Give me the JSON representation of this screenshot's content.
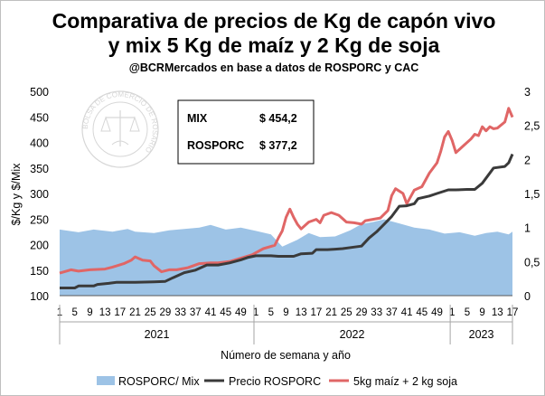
{
  "chart_data": {
    "type": "line",
    "title_line1": "Comparativa de precios de Kg de capón vivo",
    "title_line2": "y mix 5 Kg de maíz y 2 Kg de soja",
    "subtitle": "@BCRMercados en base a datos de ROSPORC y CAC",
    "ylabel": "$/Kg y $/Mix",
    "xlabel": "Número de semana y año",
    "ylim": [
      100,
      500
    ],
    "y2lim": [
      0,
      3
    ],
    "yticks": [
      "100",
      "150",
      "200",
      "250",
      "300",
      "350",
      "400",
      "450",
      "500"
    ],
    "y2ticks": [
      "0",
      "0,5",
      "1",
      "1,5",
      "2",
      "2,5",
      "3"
    ],
    "xticks": [
      {
        "idx": 0,
        "label": "1"
      },
      {
        "idx": 4,
        "label": "5"
      },
      {
        "idx": 8,
        "label": "9"
      },
      {
        "idx": 12,
        "label": "13"
      },
      {
        "idx": 16,
        "label": "17"
      },
      {
        "idx": 20,
        "label": "21"
      },
      {
        "idx": 24,
        "label": "25"
      },
      {
        "idx": 28,
        "label": "29"
      },
      {
        "idx": 32,
        "label": "33"
      },
      {
        "idx": 36,
        "label": "37"
      },
      {
        "idx": 40,
        "label": "41"
      },
      {
        "idx": 44,
        "label": "45"
      },
      {
        "idx": 48,
        "label": "49"
      },
      {
        "idx": 52,
        "label": "1"
      },
      {
        "idx": 56,
        "label": "5"
      },
      {
        "idx": 60,
        "label": "9"
      },
      {
        "idx": 64,
        "label": "13"
      },
      {
        "idx": 68,
        "label": "17"
      },
      {
        "idx": 72,
        "label": "21"
      },
      {
        "idx": 76,
        "label": "25"
      },
      {
        "idx": 80,
        "label": "29"
      },
      {
        "idx": 84,
        "label": "33"
      },
      {
        "idx": 88,
        "label": "37"
      },
      {
        "idx": 92,
        "label": "41"
      },
      {
        "idx": 96,
        "label": "45"
      },
      {
        "idx": 100,
        "label": "49"
      },
      {
        "idx": 104,
        "label": "1"
      },
      {
        "idx": 108,
        "label": "5"
      },
      {
        "idx": 112,
        "label": "9"
      },
      {
        "idx": 116,
        "label": "13"
      },
      {
        "idx": 120,
        "label": "17"
      }
    ],
    "year_groups": [
      {
        "label": "2021",
        "start": 0,
        "end": 51
      },
      {
        "label": "2022",
        "start": 52,
        "end": 103
      },
      {
        "label": "2023",
        "start": 104,
        "end": 120
      }
    ],
    "annotation": {
      "rows": [
        {
          "label": "MIX",
          "value": "$ 454,2"
        },
        {
          "label": "ROSPORC",
          "value": "$ 377,2"
        }
      ]
    },
    "watermark_text": "BOLSA DE COMERCIO DE ROSARIO",
    "series": [
      {
        "name": "ROSPORC/ Mix",
        "type": "area",
        "axis": "right",
        "color": "#9dc3e6",
        "points": [
          [
            0,
            0.97
          ],
          [
            5,
            0.93
          ],
          [
            9,
            0.97
          ],
          [
            14,
            0.94
          ],
          [
            18,
            0.98
          ],
          [
            20,
            0.94
          ],
          [
            25,
            0.92
          ],
          [
            29,
            0.96
          ],
          [
            33,
            0.98
          ],
          [
            37,
            1.0
          ],
          [
            40,
            1.04
          ],
          [
            44,
            0.97
          ],
          [
            48,
            1.0
          ],
          [
            52,
            0.95
          ],
          [
            56,
            0.9
          ],
          [
            59,
            0.72
          ],
          [
            63,
            0.82
          ],
          [
            66,
            0.92
          ],
          [
            69,
            0.86
          ],
          [
            73,
            0.87
          ],
          [
            77,
            0.96
          ],
          [
            80,
            1.05
          ],
          [
            83,
            1.08
          ],
          [
            86,
            1.12
          ],
          [
            90,
            1.06
          ],
          [
            94,
            1.0
          ],
          [
            98,
            0.97
          ],
          [
            102,
            0.91
          ],
          [
            106,
            0.93
          ],
          [
            110,
            0.88
          ],
          [
            113,
            0.92
          ],
          [
            116,
            0.94
          ],
          [
            119,
            0.9
          ],
          [
            120,
            0.94
          ]
        ]
      },
      {
        "name": "Precio ROSPORC",
        "type": "line",
        "axis": "left",
        "color": "#3a3a3a",
        "points": [
          [
            0,
            115
          ],
          [
            4,
            115
          ],
          [
            5,
            119
          ],
          [
            9,
            119
          ],
          [
            10,
            122
          ],
          [
            13,
            124
          ],
          [
            15,
            126
          ],
          [
            20,
            126
          ],
          [
            25,
            127
          ],
          [
            28,
            128
          ],
          [
            30,
            135
          ],
          [
            33,
            145
          ],
          [
            36,
            150
          ],
          [
            39,
            160
          ],
          [
            42,
            160
          ],
          [
            45,
            164
          ],
          [
            48,
            170
          ],
          [
            50,
            175
          ],
          [
            52,
            178
          ],
          [
            56,
            178
          ],
          [
            58,
            177
          ],
          [
            62,
            177
          ],
          [
            64,
            182
          ],
          [
            67,
            183
          ],
          [
            68,
            190
          ],
          [
            71,
            190
          ],
          [
            73,
            191
          ],
          [
            75,
            192
          ],
          [
            78,
            195
          ],
          [
            80,
            197
          ],
          [
            82,
            213
          ],
          [
            84,
            225
          ],
          [
            86,
            240
          ],
          [
            88,
            255
          ],
          [
            90,
            275
          ],
          [
            92,
            276
          ],
          [
            94,
            280
          ],
          [
            95,
            290
          ],
          [
            98,
            295
          ],
          [
            100,
            300
          ],
          [
            103,
            307
          ],
          [
            105,
            307
          ],
          [
            108,
            308
          ],
          [
            110,
            308
          ],
          [
            112,
            320
          ],
          [
            115,
            350
          ],
          [
            118,
            353
          ],
          [
            119,
            360
          ],
          [
            120,
            377
          ]
        ]
      },
      {
        "name": "5kg maíz + 2 kg soja",
        "type": "line",
        "axis": "right",
        "color": "#e06666",
        "points": [
          [
            0,
            0.33
          ],
          [
            3,
            0.38
          ],
          [
            5,
            0.36
          ],
          [
            8,
            0.38
          ],
          [
            12,
            0.39
          ],
          [
            14,
            0.42
          ],
          [
            17,
            0.47
          ],
          [
            19,
            0.52
          ],
          [
            20,
            0.57
          ],
          [
            22,
            0.52
          ],
          [
            24,
            0.51
          ],
          [
            25,
            0.44
          ],
          [
            27,
            0.35
          ],
          [
            29,
            0.38
          ],
          [
            31,
            0.38
          ],
          [
            34,
            0.41
          ],
          [
            37,
            0.47
          ],
          [
            40,
            0.48
          ],
          [
            42,
            0.48
          ],
          [
            45,
            0.5
          ],
          [
            48,
            0.55
          ],
          [
            51,
            0.6
          ],
          [
            54,
            0.69
          ],
          [
            57,
            0.74
          ],
          [
            58,
            0.85
          ],
          [
            59,
            0.95
          ],
          [
            60,
            1.15
          ],
          [
            61,
            1.27
          ],
          [
            62,
            1.15
          ],
          [
            63,
            1.05
          ],
          [
            64,
            0.98
          ],
          [
            66,
            1.08
          ],
          [
            68,
            1.12
          ],
          [
            69,
            1.07
          ],
          [
            70,
            1.18
          ],
          [
            72,
            1.22
          ],
          [
            74,
            1.18
          ],
          [
            76,
            1.08
          ],
          [
            78,
            1.07
          ],
          [
            80,
            1.05
          ],
          [
            81,
            1.1
          ],
          [
            83,
            1.12
          ],
          [
            85,
            1.14
          ],
          [
            87,
            1.25
          ],
          [
            88,
            1.47
          ],
          [
            89,
            1.57
          ],
          [
            91,
            1.5
          ],
          [
            92,
            1.35
          ],
          [
            94,
            1.55
          ],
          [
            96,
            1.6
          ],
          [
            98,
            1.8
          ],
          [
            100,
            1.95
          ],
          [
            101,
            2.12
          ],
          [
            102,
            2.33
          ],
          [
            103,
            2.41
          ],
          [
            104,
            2.28
          ],
          [
            105,
            2.1
          ],
          [
            107,
            2.2
          ],
          [
            109,
            2.3
          ],
          [
            110,
            2.37
          ],
          [
            111,
            2.35
          ],
          [
            112,
            2.48
          ],
          [
            113,
            2.42
          ],
          [
            114,
            2.48
          ],
          [
            115,
            2.45
          ],
          [
            116,
            2.46
          ],
          [
            118,
            2.55
          ],
          [
            119,
            2.75
          ],
          [
            120,
            2.62
          ]
        ]
      }
    ]
  }
}
